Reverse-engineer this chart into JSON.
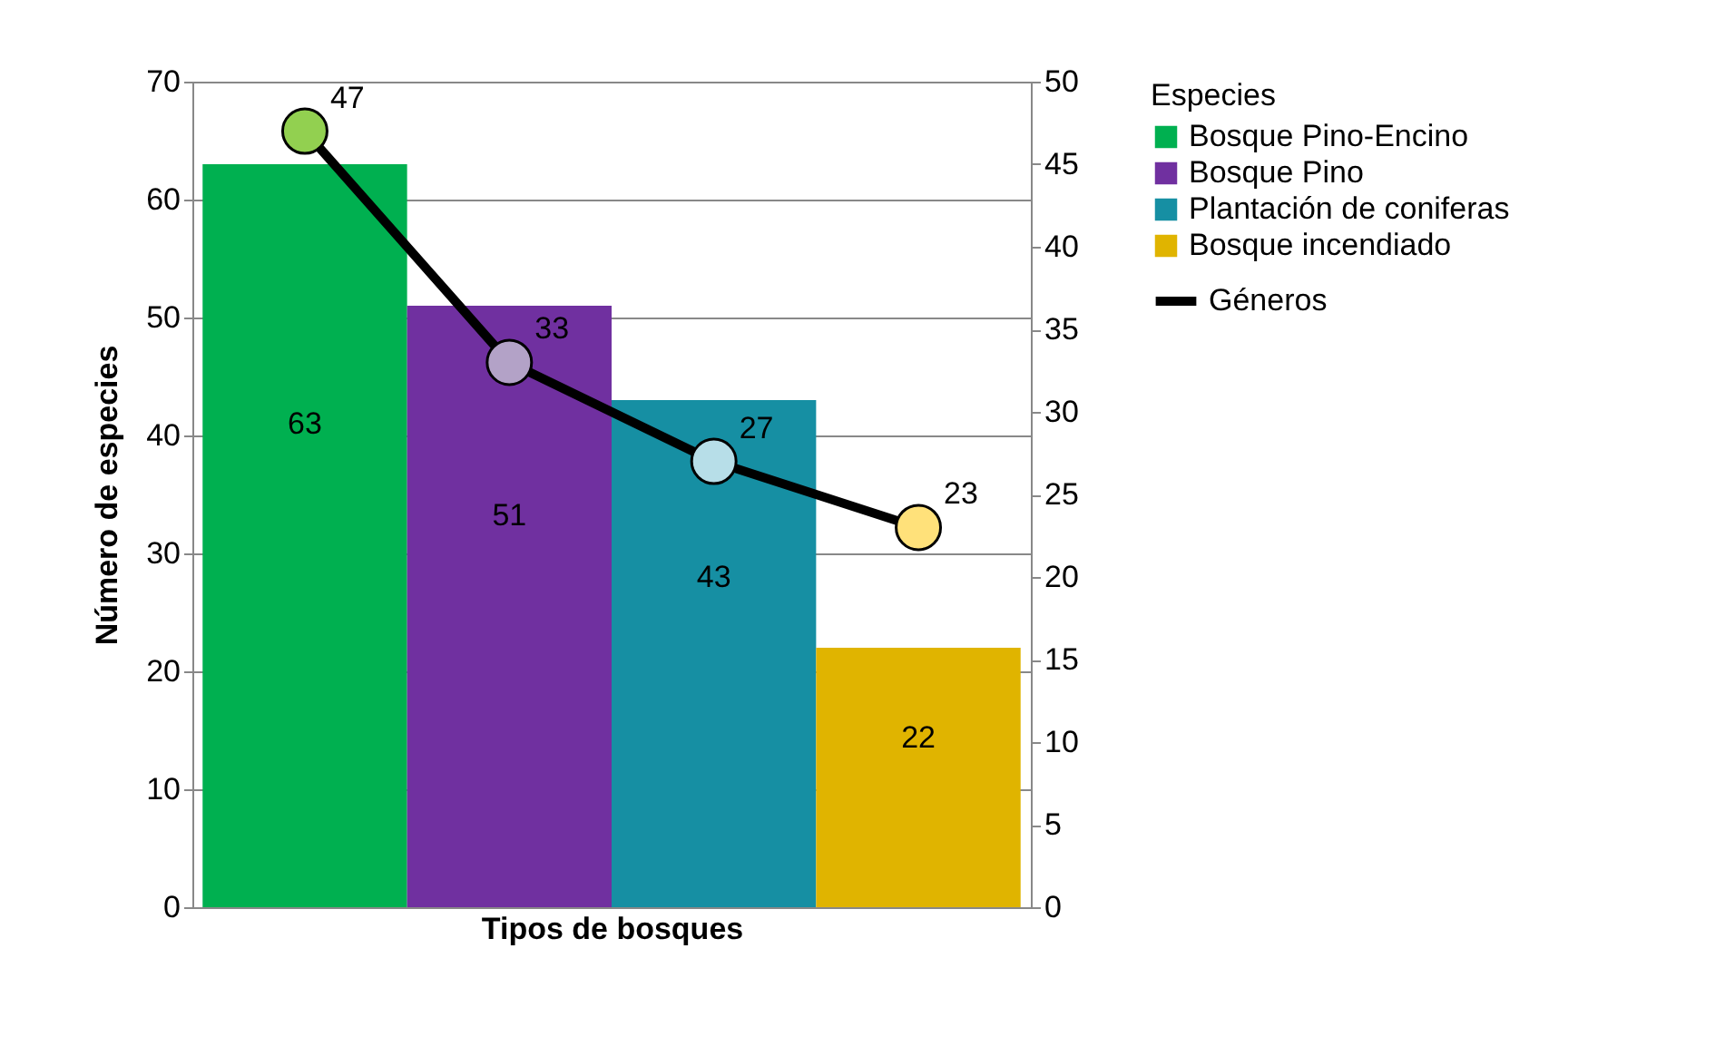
{
  "chart_data": {
    "type": "bar",
    "xlabel": "Tipos de bosques",
    "ylabel": "Número de especies",
    "legend_title": "Especies",
    "categories": [
      null,
      null,
      null,
      null
    ],
    "stacked": true,
    "series": [
      {
        "name": "Bosque Pino-Encino",
        "color": "#00b050",
        "values": [
          63,
          null,
          null,
          null
        ]
      },
      {
        "name": "Bosque Pino",
        "color": "#7030a0",
        "values": [
          null,
          51,
          null,
          null
        ]
      },
      {
        "name": "Plantación de coniferas",
        "color": "#168fa3",
        "values": [
          null,
          null,
          43,
          null
        ]
      },
      {
        "name": "Bosque incendiado",
        "color": "#e0b400",
        "values": [
          null,
          null,
          null,
          22
        ]
      },
      {
        "name": "Géneros",
        "type": "line",
        "axis": "y2",
        "color": "#000000",
        "values": [
          47,
          33,
          27,
          23
        ],
        "colors": [
          "#92d050",
          "#b3a2c7",
          "#b7dee8",
          "#ffe17a"
        ],
        "marker": "circle"
      }
    ],
    "ylim": [
      0,
      70
    ],
    "yticks": [
      0,
      10,
      20,
      30,
      40,
      50,
      60,
      70
    ],
    "y2lim": [
      0,
      50
    ],
    "y2ticks": [
      0,
      5,
      10,
      15,
      20,
      25,
      30,
      35,
      40,
      45,
      50
    ],
    "grid": "y",
    "legend": "right",
    "tick_labels": "y",
    "data_labels": true
  }
}
